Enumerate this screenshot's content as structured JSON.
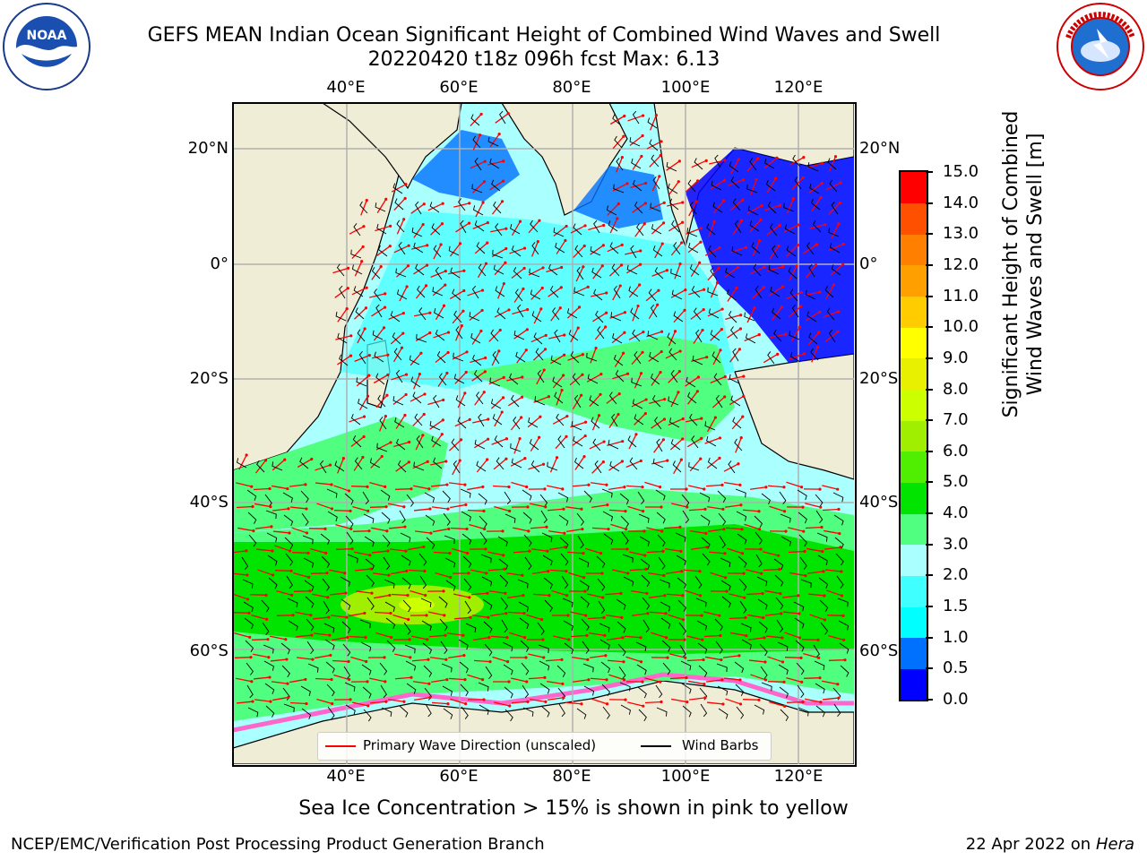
{
  "header": {
    "title_line1": "GEFS MEAN Indian Ocean Significant Height of Combined Wind Waves and Swell",
    "title_line2": "20220420 t18z 096h fcst   Max: 6.13"
  },
  "logos": {
    "left": "noaa-logo",
    "right": "nws-logo"
  },
  "map": {
    "lon_ticks": [
      "40°E",
      "60°E",
      "80°E",
      "100°E",
      "120°E"
    ],
    "lat_ticks_left": [
      "20°N",
      "0°",
      "20°S",
      "40°S",
      "60°S"
    ],
    "lat_ticks_right": [
      "20°N",
      "0°",
      "20°S",
      "40°S",
      "60°S"
    ],
    "colors": {
      "land": "#efedd6",
      "ice": "#ffffff",
      "wave_arrow": "#ff0000",
      "wind_barb": "#000000",
      "grid": "#b0b0b0"
    }
  },
  "legend": {
    "wave_label": "Primary Wave Direction (unscaled)",
    "barb_label": "Wind Barbs",
    "wave_color": "#ff0000",
    "barb_color": "#000000"
  },
  "colorbar": {
    "label_line1": "Significant Height of Combined",
    "label_line2": "Wind Waves and Swell [m]",
    "ticks": [
      "15.0",
      "14.0",
      "13.0",
      "12.0",
      "11.0",
      "10.0",
      "9.0",
      "8.0",
      "7.0",
      "6.0",
      "5.0",
      "4.0",
      "3.0",
      "2.0",
      "1.5",
      "1.0",
      "0.5",
      "0.0"
    ],
    "colors_bottom_to_top": [
      "#0000ff",
      "#0070ff",
      "#00ffff",
      "#40ffff",
      "#aaffff",
      "#50ff80",
      "#00e400",
      "#50ee00",
      "#a0ee00",
      "#ccff00",
      "#e8f000",
      "#ffff00",
      "#ffcc00",
      "#ffa000",
      "#ff8000",
      "#ff5000",
      "#ff0000"
    ]
  },
  "caption": "Sea Ice Concentration > 15% is shown in pink to yellow",
  "footer": {
    "left": "NCEP/EMC/Verification Post Processing Product Generation Branch",
    "right_prefix": "22 Apr 2022 on ",
    "right_host": "Hera"
  }
}
